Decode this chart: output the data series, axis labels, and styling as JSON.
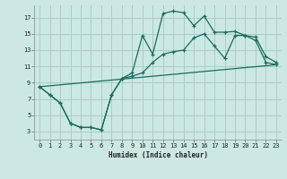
{
  "xlabel": "Humidex (Indice chaleur)",
  "bg_color": "#cce8e4",
  "grid_color": "#aaccc8",
  "line_color": "#1a6b5a",
  "xlim": [
    -0.5,
    23.5
  ],
  "ylim": [
    2,
    18.5
  ],
  "xticks": [
    0,
    1,
    2,
    3,
    4,
    5,
    6,
    7,
    8,
    9,
    10,
    11,
    12,
    13,
    14,
    15,
    16,
    17,
    18,
    19,
    20,
    21,
    22,
    23
  ],
  "yticks": [
    3,
    5,
    7,
    9,
    11,
    13,
    15,
    17
  ],
  "line1_x": [
    0,
    1,
    2,
    3,
    4,
    5,
    6,
    7,
    8,
    9,
    10,
    11,
    12,
    13,
    14,
    15,
    16,
    17,
    18,
    19,
    20,
    21,
    22,
    23
  ],
  "line1_y": [
    8.5,
    7.5,
    6.5,
    4.0,
    3.5,
    3.5,
    3.2,
    7.5,
    9.5,
    10.2,
    14.8,
    12.5,
    17.5,
    17.8,
    17.6,
    16.0,
    17.2,
    15.2,
    15.2,
    15.3,
    14.8,
    14.6,
    12.2,
    11.5
  ],
  "line2_x": [
    0,
    1,
    2,
    3,
    4,
    5,
    6,
    7,
    8,
    9,
    10,
    11,
    12,
    13,
    14,
    15,
    16,
    17,
    18,
    19,
    20,
    21,
    22,
    23
  ],
  "line2_y": [
    8.5,
    7.5,
    6.5,
    4.0,
    3.5,
    3.5,
    3.2,
    7.5,
    9.5,
    9.8,
    10.2,
    11.5,
    12.5,
    12.8,
    13.0,
    14.5,
    15.0,
    13.5,
    12.0,
    14.8,
    14.8,
    14.2,
    11.5,
    11.2
  ],
  "line3_x": [
    0,
    23
  ],
  "line3_y": [
    8.5,
    11.2
  ]
}
